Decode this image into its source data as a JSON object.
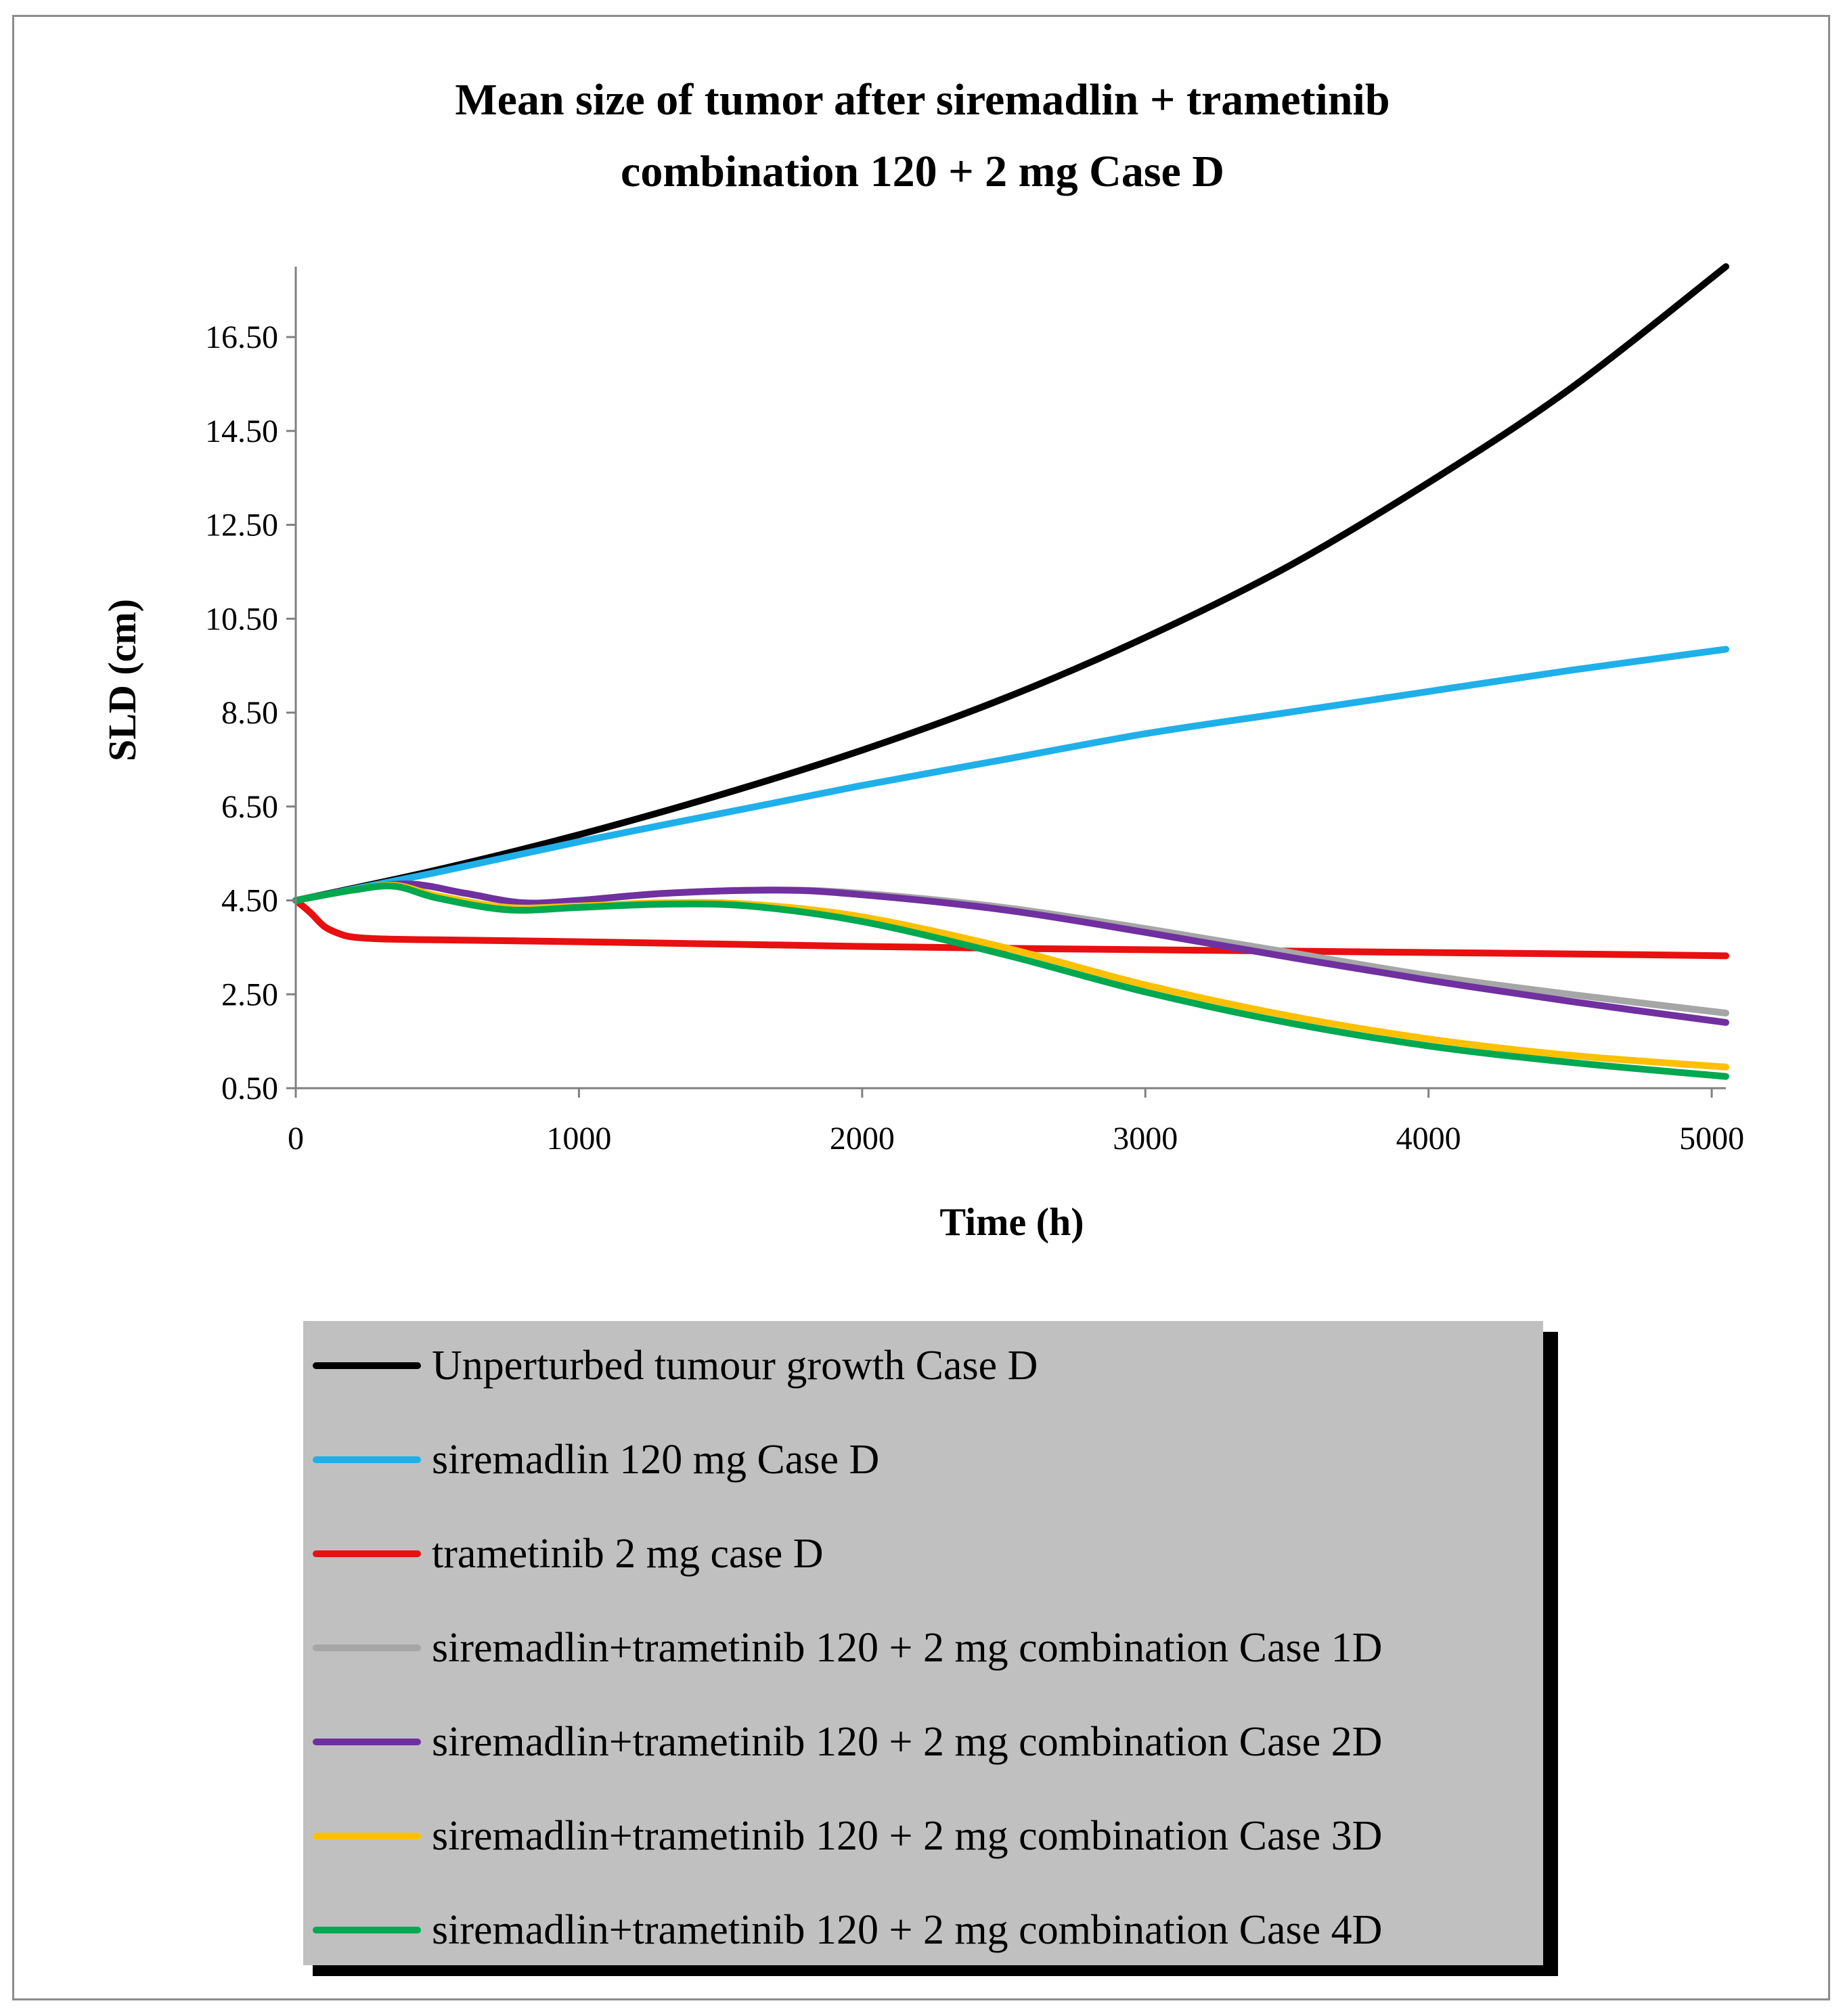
{
  "chart_data": {
    "type": "line",
    "title_lines": [
      "Mean size of tumor after siremadlin + trametinib",
      "combination 120 + 2 mg Case D"
    ],
    "xlabel": "Time (h)",
    "ylabel": "SLD (cm)",
    "xlim": [
      0,
      5050
    ],
    "ylim": [
      0.5,
      18.0
    ],
    "x_ticks": [
      0,
      1000,
      2000,
      3000,
      4000,
      5000
    ],
    "x_tick_labels": [
      "0",
      "1000",
      "2000",
      "3000",
      "4000",
      "5000"
    ],
    "y_ticks": [
      0.5,
      2.5,
      4.5,
      6.5,
      8.5,
      10.5,
      12.5,
      14.5,
      16.5
    ],
    "y_tick_labels": [
      "0.50",
      "2.50",
      "4.50",
      "6.50",
      "8.50",
      "10.50",
      "12.50",
      "14.50",
      "16.50"
    ],
    "legend_position": "bottom",
    "series": [
      {
        "name": "Unperturbed tumour growth Case D",
        "color": "#000000",
        "x": [
          0,
          500,
          1000,
          1500,
          2000,
          2500,
          3000,
          3500,
          4000,
          4500,
          5050
        ],
        "y": [
          4.5,
          5.15,
          5.9,
          6.75,
          7.7,
          8.8,
          10.1,
          11.6,
          13.4,
          15.4,
          18.0
        ]
      },
      {
        "name": "siremadlin 120 mg Case D",
        "color": "#1fb0ea",
        "x": [
          0,
          500,
          1000,
          1500,
          2000,
          2500,
          3000,
          3500,
          4000,
          4500,
          5050
        ],
        "y": [
          4.5,
          5.1,
          5.75,
          6.35,
          6.95,
          7.5,
          8.05,
          8.5,
          8.95,
          9.4,
          9.85
        ]
      },
      {
        "name": "trametinib 2 mg case D",
        "color": "#e81010",
        "x": [
          0,
          50,
          100,
          150,
          200,
          300,
          500,
          1000,
          1500,
          2000,
          2500,
          3000,
          3500,
          4000,
          4500,
          5050
        ],
        "y": [
          4.5,
          4.25,
          3.95,
          3.8,
          3.72,
          3.68,
          3.66,
          3.62,
          3.57,
          3.52,
          3.48,
          3.45,
          3.42,
          3.39,
          3.36,
          3.32
        ]
      },
      {
        "name": "siremadlin+trametinib 120 + 2 mg combination Case 1D",
        "color": "#a6a6a6",
        "x": [
          0,
          200,
          400,
          600,
          800,
          1000,
          1300,
          1700,
          2000,
          2500,
          3000,
          3500,
          4000,
          4500,
          5050
        ],
        "y": [
          4.5,
          4.72,
          4.85,
          4.65,
          4.45,
          4.5,
          4.65,
          4.72,
          4.65,
          4.35,
          3.9,
          3.4,
          2.9,
          2.5,
          2.1
        ]
      },
      {
        "name": "siremadlin+trametinib 120 + 2 mg combination Case 2D",
        "color": "#7030a0",
        "x": [
          0,
          200,
          400,
          600,
          800,
          1000,
          1300,
          1700,
          2000,
          2500,
          3000,
          3500,
          4000,
          4500,
          5050
        ],
        "y": [
          4.5,
          4.72,
          4.85,
          4.65,
          4.45,
          4.5,
          4.65,
          4.72,
          4.62,
          4.3,
          3.82,
          3.3,
          2.8,
          2.35,
          1.9
        ]
      },
      {
        "name": "siremadlin+trametinib 120 + 2 mg combination Case 3D",
        "color": "#ffc000",
        "x": [
          0,
          200,
          350,
          500,
          750,
          1000,
          1300,
          1600,
          2000,
          2500,
          3000,
          3500,
          4000,
          4500,
          5050
        ],
        "y": [
          4.5,
          4.72,
          4.82,
          4.6,
          4.35,
          4.38,
          4.45,
          4.42,
          4.15,
          3.5,
          2.7,
          2.05,
          1.55,
          1.2,
          0.95
        ]
      },
      {
        "name": "siremadlin+trametinib 120 + 2 mg combination Case 4D",
        "color": "#00a850",
        "x": [
          0,
          200,
          350,
          500,
          750,
          1000,
          1300,
          1600,
          2000,
          2500,
          3000,
          3500,
          4000,
          4500,
          5050
        ],
        "y": [
          4.5,
          4.72,
          4.8,
          4.55,
          4.3,
          4.35,
          4.42,
          4.38,
          4.05,
          3.35,
          2.55,
          1.9,
          1.4,
          1.05,
          0.75
        ]
      }
    ]
  }
}
